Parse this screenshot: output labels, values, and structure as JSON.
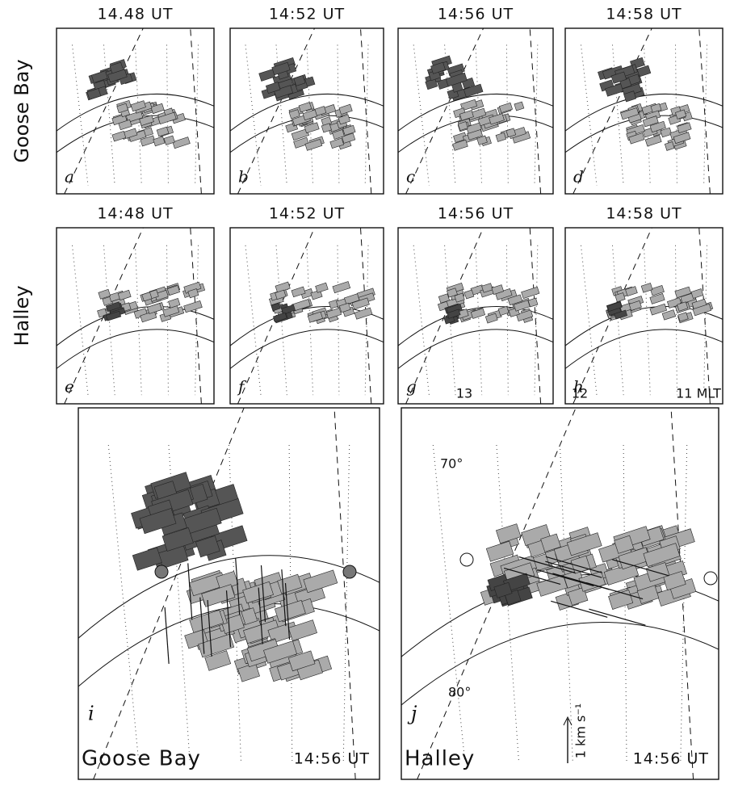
{
  "rows": [
    {
      "label": "Goose Bay",
      "panels": [
        {
          "time": "14.48 UT",
          "letter": "a"
        },
        {
          "time": "14:52 UT",
          "letter": "b"
        },
        {
          "time": "14:56 UT",
          "letter": "c"
        },
        {
          "time": "14:58 UT",
          "letter": "d"
        }
      ]
    },
    {
      "label": "Halley",
      "panels": [
        {
          "time": "14:48 UT",
          "letter": "e"
        },
        {
          "time": "14:52 UT",
          "letter": "f"
        },
        {
          "time": "14:56 UT",
          "letter": "g"
        },
        {
          "time": "14:58 UT",
          "letter": "h"
        }
      ]
    }
  ],
  "large_panels": [
    {
      "letter": "i",
      "station": "Goose Bay",
      "time": "14:56 UT"
    },
    {
      "letter": "j",
      "station": "Halley",
      "time": "14:56 UT",
      "mlt_labels": [
        "13",
        "12",
        "11 MLT"
      ],
      "latitude_labels": [
        "70°",
        "80°"
      ],
      "scale_label": "1 km s⁻¹"
    }
  ]
}
